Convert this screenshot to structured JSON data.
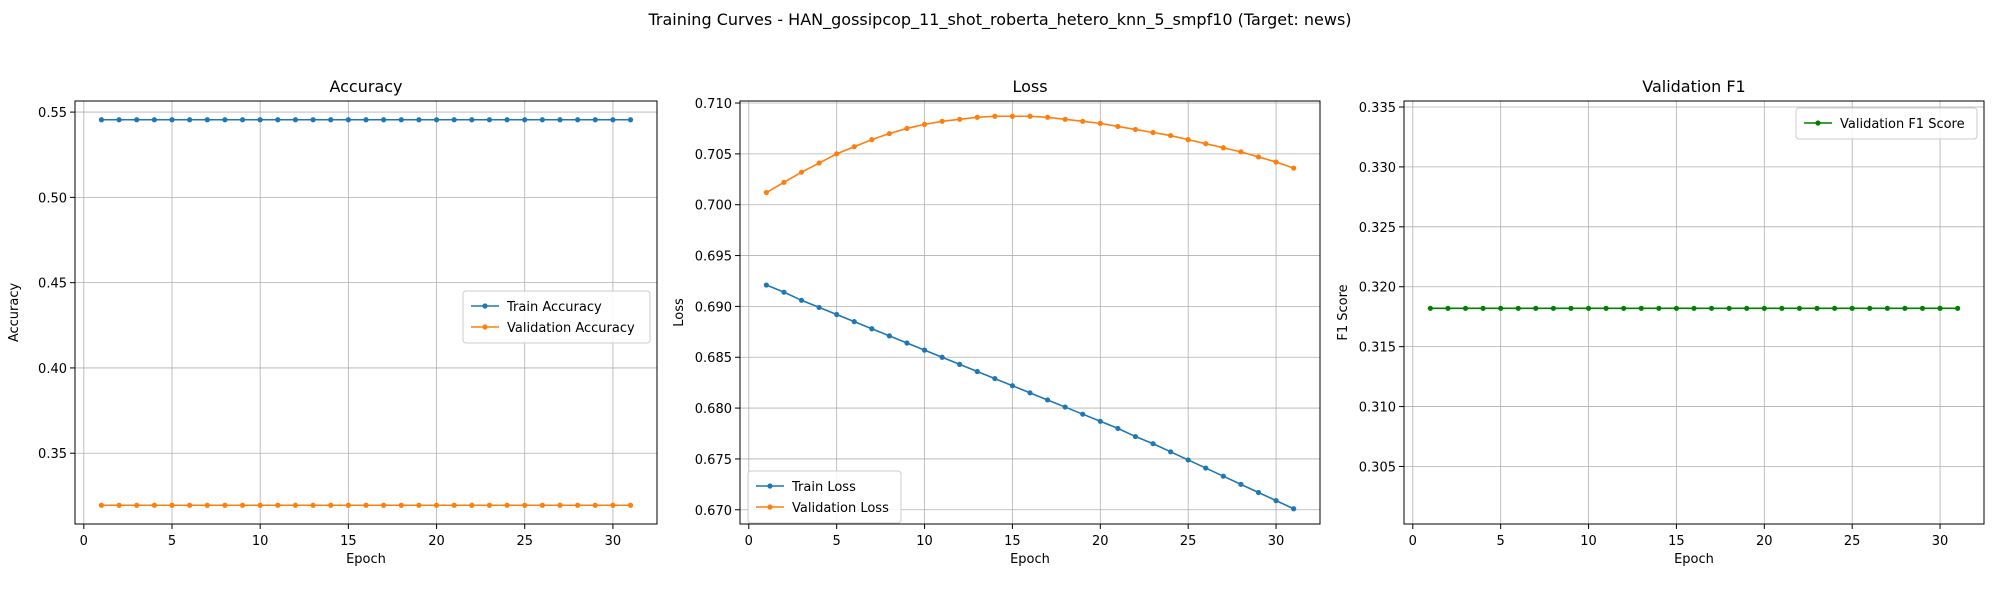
{
  "figure": {
    "suptitle": "Training Curves - HAN_gossipcop_11_shot_roberta_hetero_knn_5_smpf10 (Target: news)"
  },
  "colors": {
    "train": "#1f77b4",
    "validation": "#ff7f0e",
    "f1": "#008000",
    "grid": "#b0b0b0"
  },
  "chart_data": [
    {
      "type": "line",
      "title": "Accuracy",
      "xlabel": "Epoch",
      "ylabel": "Accuracy",
      "xlim": [
        -0.5,
        32.5
      ],
      "ylim": [
        0.3085,
        0.5565
      ],
      "xticks": [
        0,
        5,
        10,
        15,
        20,
        25,
        30
      ],
      "yticks": [
        0.35,
        0.4,
        0.45,
        0.5,
        0.55
      ],
      "ytick_decimals": 2,
      "grid": true,
      "legend": "center-right",
      "series": [
        {
          "name": "Train Accuracy",
          "color": "#1f77b4",
          "x_start": 1,
          "x_end": 31,
          "y_const": 0.5455
        },
        {
          "name": "Validation Accuracy",
          "color": "#ff7f0e",
          "x_start": 1,
          "x_end": 31,
          "y_const": 0.3195
        }
      ]
    },
    {
      "type": "line",
      "title": "Loss",
      "xlabel": "Epoch",
      "ylabel": "Loss",
      "xlim": [
        -0.5,
        32.5
      ],
      "ylim": [
        0.6686,
        0.7102
      ],
      "xticks": [
        0,
        5,
        10,
        15,
        20,
        25,
        30
      ],
      "yticks": [
        0.67,
        0.675,
        0.68,
        0.685,
        0.69,
        0.695,
        0.7,
        0.705,
        0.71
      ],
      "ytick_decimals": 3,
      "grid": true,
      "legend": "lower-left",
      "series": [
        {
          "name": "Train Loss",
          "color": "#1f77b4",
          "x": [
            1,
            2,
            3,
            4,
            5,
            6,
            7,
            8,
            9,
            10,
            11,
            12,
            13,
            14,
            15,
            16,
            17,
            18,
            19,
            20,
            21,
            22,
            23,
            24,
            25,
            26,
            27,
            28,
            29,
            30,
            31
          ],
          "y": [
            0.6921,
            0.6914,
            0.6906,
            0.6899,
            0.6892,
            0.6885,
            0.6878,
            0.6871,
            0.6864,
            0.6857,
            0.685,
            0.6843,
            0.6836,
            0.6829,
            0.6822,
            0.6815,
            0.6808,
            0.6801,
            0.6794,
            0.6787,
            0.678,
            0.6772,
            0.6765,
            0.6757,
            0.6749,
            0.6741,
            0.6733,
            0.6725,
            0.6717,
            0.6709,
            0.6701
          ]
        },
        {
          "name": "Validation Loss",
          "color": "#ff7f0e",
          "x": [
            1,
            2,
            3,
            4,
            5,
            6,
            7,
            8,
            9,
            10,
            11,
            12,
            13,
            14,
            15,
            16,
            17,
            18,
            19,
            20,
            21,
            22,
            23,
            24,
            25,
            26,
            27,
            28,
            29,
            30,
            31
          ],
          "y": [
            0.7012,
            0.7022,
            0.7032,
            0.7041,
            0.705,
            0.7057,
            0.7064,
            0.707,
            0.7075,
            0.7079,
            0.7082,
            0.7084,
            0.7086,
            0.7087,
            0.7087,
            0.7087,
            0.7086,
            0.7084,
            0.7082,
            0.708,
            0.7077,
            0.7074,
            0.7071,
            0.7068,
            0.7064,
            0.706,
            0.7056,
            0.7052,
            0.7047,
            0.7042,
            0.7036
          ]
        }
      ]
    },
    {
      "type": "line",
      "title": "Validation F1",
      "xlabel": "Epoch",
      "ylabel": "F1 Score",
      "xlim": [
        -0.5,
        32.5
      ],
      "ylim": [
        0.3002,
        0.3355
      ],
      "xticks": [
        0,
        5,
        10,
        15,
        20,
        25,
        30
      ],
      "yticks": [
        0.305,
        0.31,
        0.315,
        0.32,
        0.325,
        0.33,
        0.335
      ],
      "ytick_decimals": 3,
      "grid": true,
      "legend": "top-right",
      "series": [
        {
          "name": "Validation F1 Score",
          "color": "#008000",
          "x_start": 1,
          "x_end": 31,
          "y_const": 0.3182
        }
      ]
    }
  ]
}
